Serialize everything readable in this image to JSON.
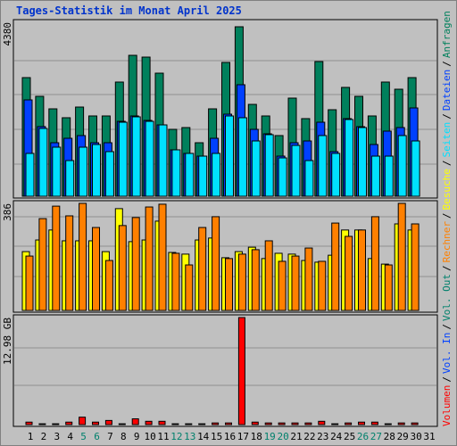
{
  "title": "Tages-Statistik im Monat April 2025",
  "legend_separator": "/",
  "categories": [
    "1",
    "2",
    "3",
    "4",
    "5",
    "6",
    "7",
    "8",
    "9",
    "10",
    "11",
    "12",
    "13",
    "14",
    "15",
    "16",
    "17",
    "18",
    "19",
    "20",
    "21",
    "22",
    "23",
    "24",
    "25",
    "26",
    "27",
    "28",
    "29",
    "30",
    "31"
  ],
  "category_colors": [
    "#000000",
    "#000000",
    "#000000",
    "#000000",
    "#00806c",
    "#00806c",
    "#000000",
    "#000000",
    "#000000",
    "#000000",
    "#000000",
    "#00806c",
    "#00806c",
    "#000000",
    "#000000",
    "#000000",
    "#000000",
    "#000000",
    "#00806c",
    "#00806c",
    "#000000",
    "#000000",
    "#000000",
    "#000000",
    "#000000",
    "#00806c",
    "#00806c",
    "#000000",
    "#000000",
    "#000000",
    "#000000"
  ],
  "chart_data": [
    {
      "type": "bar",
      "ylim": [
        0,
        4380
      ],
      "yticks": [
        4380
      ],
      "series": [
        {
          "name": "Seiten",
          "color": "#00e0ff",
          "values": [
            1107,
            1752,
            1268,
            922,
            1268,
            1337,
            1153,
            1913,
            2052,
            1936,
            1844,
            1199,
            1107,
            1037,
            1107,
            2075,
            2029,
            1429,
            1591,
            991,
            1314,
            922,
            1568,
            1107,
            1983,
            1775,
            1037,
            1037,
            1568,
            1429,
            null
          ]
        },
        {
          "name": "Dateien",
          "color": "#0040ff",
          "values": [
            2490,
            1800,
            1383,
            1498,
            1568,
            1383,
            1383,
            1936,
            2075,
            1960,
            1844,
            1199,
            1107,
            1037,
            1498,
            2121,
            2882,
            1729,
            1614,
            1037,
            1383,
            1429,
            1913,
            1153,
            2006,
            1798,
            1337,
            1683,
            1775,
            2282,
            null
          ]
        },
        {
          "name": "Anfragen",
          "color": "#00805c",
          "values": [
            3066,
            2582,
            2259,
            2029,
            2305,
            2075,
            2075,
            2951,
            3642,
            3596,
            3181,
            1729,
            1775,
            1383,
            2259,
            3458,
            4380,
            2374,
            2075,
            1568,
            2536,
            2006,
            3481,
            2236,
            2813,
            2582,
            2075,
            2951,
            2766,
            3066,
            null
          ]
        }
      ]
    },
    {
      "type": "bar",
      "ylim": [
        0,
        386
      ],
      "yticks": [
        386
      ],
      "series": [
        {
          "name": "Rechner",
          "color": "#ff8000",
          "values": [
            196,
            331,
            376,
            341,
            386,
            299,
            180,
            306,
            335,
            373,
            383,
            206,
            164,
            299,
            338,
            187,
            203,
            219,
            251,
            177,
            196,
            225,
            177,
            315,
            267,
            290,
            338,
            164,
            386,
            312,
            null
          ]
        },
        {
          "name": "Besuche",
          "color": "#ffff00",
          "values": [
            212,
            254,
            290,
            251,
            251,
            251,
            212,
            367,
            248,
            254,
            322,
            209,
            203,
            254,
            261,
            190,
            212,
            228,
            187,
            206,
            203,
            180,
            174,
            199,
            290,
            290,
            187,
            167,
            312,
            290,
            null
          ]
        }
      ]
    },
    {
      "type": "bar",
      "ylim": [
        0,
        12.98
      ],
      "yticks": [
        {
          "value": 12.98,
          "label": "12.98 GB"
        }
      ],
      "series": [
        {
          "name": "Volumen",
          "color": "#ff0000",
          "values": [
            0.3,
            0.1,
            0.1,
            0.3,
            0.9,
            0.3,
            0.5,
            0.1,
            0.7,
            0.4,
            0.4,
            0.1,
            0.1,
            0.1,
            0.2,
            0.2,
            12.98,
            0.3,
            0.2,
            0.2,
            0.2,
            0.2,
            0.4,
            0.1,
            0.2,
            0.3,
            0.3,
            0.1,
            0.2,
            0.2,
            null
          ]
        },
        {
          "name": "Vol. In",
          "color": "#0040ff",
          "values": [
            null,
            null,
            null,
            null,
            null,
            null,
            null,
            null,
            null,
            null,
            null,
            null,
            null,
            null,
            null,
            null,
            null,
            null,
            null,
            null,
            null,
            null,
            null,
            null,
            null,
            null,
            null,
            null,
            null,
            null,
            null
          ]
        },
        {
          "name": "Vol. Out",
          "color": "#00806c",
          "values": [
            null,
            null,
            null,
            null,
            null,
            null,
            null,
            null,
            null,
            null,
            null,
            null,
            null,
            null,
            null,
            null,
            null,
            null,
            null,
            null,
            null,
            null,
            null,
            null,
            null,
            null,
            null,
            null,
            null,
            null,
            null
          ]
        }
      ]
    }
  ]
}
